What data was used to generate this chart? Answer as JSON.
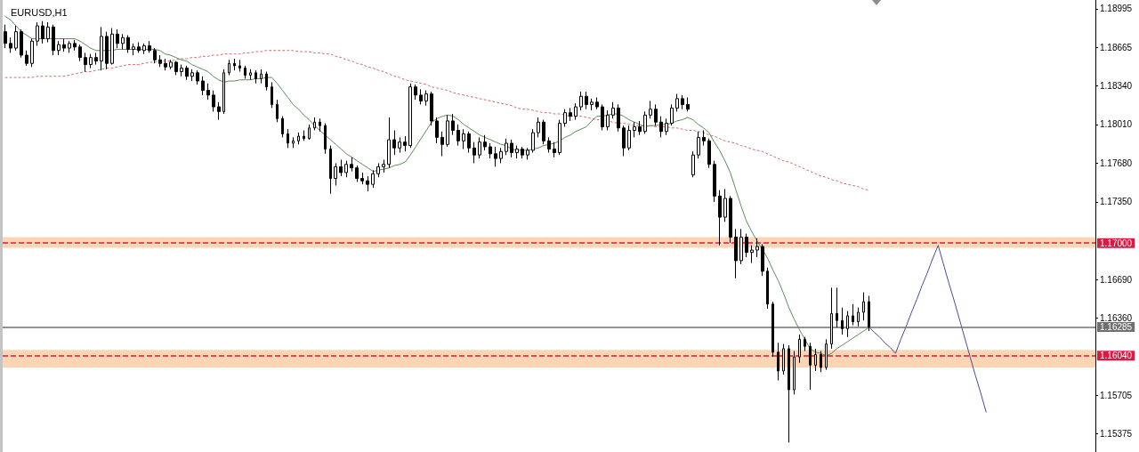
{
  "chart_data": {
    "type": "candlestick",
    "title": "EURUSD,H1",
    "color": "#000000",
    "categories": [
      null,
      null,
      null,
      null,
      null,
      null,
      null,
      null,
      null,
      null,
      null,
      null,
      null,
      null,
      null,
      null,
      null,
      null,
      null,
      null,
      null,
      null,
      null,
      null,
      null,
      null,
      null,
      null,
      null,
      null,
      null,
      null,
      null,
      null,
      null,
      null,
      null,
      null,
      null,
      null,
      null,
      null,
      null,
      null,
      null,
      null,
      null,
      null,
      null,
      null,
      null,
      null,
      null,
      null,
      null,
      null,
      null,
      null,
      null,
      null,
      null,
      null,
      null,
      null,
      null,
      null,
      null,
      null,
      null,
      null,
      null,
      null,
      null,
      null,
      null,
      null,
      null,
      null,
      null,
      null,
      null,
      null,
      null,
      null,
      null,
      null,
      null,
      null,
      null,
      null,
      null,
      null,
      null,
      null,
      null,
      null,
      null,
      null,
      null,
      null,
      null,
      null,
      null,
      null,
      null,
      null,
      null,
      null,
      null,
      null,
      null,
      null,
      null,
      null,
      null,
      null,
      null,
      null,
      null,
      null,
      null,
      null,
      null,
      null,
      null,
      null,
      null,
      null,
      null,
      null,
      null,
      null,
      null,
      null,
      null,
      null,
      null,
      null,
      null,
      null,
      null,
      null,
      null,
      null,
      null,
      null,
      null,
      null,
      null,
      null,
      null,
      null,
      null,
      null,
      null,
      null,
      null,
      null,
      null,
      null,
      null,
      null,
      null,
      null,
      null,
      null,
      null,
      null,
      null,
      null,
      null,
      null,
      null,
      null,
      null,
      null,
      null,
      null,
      null,
      null,
      null,
      null,
      null,
      null,
      null,
      null,
      null,
      null,
      null,
      null,
      null,
      null,
      null,
      null,
      null,
      null,
      null,
      null,
      null,
      null,
      null,
      null,
      null,
      null,
      null
    ],
    "ohlc": [
      [
        1.188,
        1.1886,
        1.1866,
        1.187
      ],
      [
        1.187,
        1.1875,
        1.1862,
        1.1866
      ],
      [
        1.1866,
        1.1885,
        1.1864,
        1.188
      ],
      [
        1.188,
        1.1882,
        1.1858,
        1.186
      ],
      [
        1.186,
        1.1864,
        1.1851,
        1.1853
      ],
      [
        1.1853,
        1.1874,
        1.185,
        1.1872
      ],
      [
        1.1872,
        1.1888,
        1.1868,
        1.1885
      ],
      [
        1.1885,
        1.1889,
        1.187,
        1.1874
      ],
      [
        1.1874,
        1.1888,
        1.1871,
        1.1884
      ],
      [
        1.1884,
        1.1886,
        1.186,
        1.1864
      ],
      [
        1.1864,
        1.1872,
        1.186,
        1.1869
      ],
      [
        1.1869,
        1.1874,
        1.1863,
        1.1866
      ],
      [
        1.1866,
        1.1872,
        1.1862,
        1.187
      ],
      [
        1.187,
        1.1873,
        1.1864,
        1.1867
      ],
      [
        1.1867,
        1.1869,
        1.1855,
        1.1858
      ],
      [
        1.1858,
        1.1862,
        1.1846,
        1.1852
      ],
      [
        1.1852,
        1.1861,
        1.1849,
        1.1858
      ],
      [
        1.1858,
        1.1862,
        1.1852,
        1.1855
      ],
      [
        1.1855,
        1.1884,
        1.1847,
        1.1876
      ],
      [
        1.1876,
        1.188,
        1.1848,
        1.1853
      ],
      [
        1.1853,
        1.1883,
        1.1852,
        1.1878
      ],
      [
        1.1878,
        1.1882,
        1.1866,
        1.187
      ],
      [
        1.187,
        1.1878,
        1.1865,
        1.1875
      ],
      [
        1.1875,
        1.1877,
        1.1862,
        1.1865
      ],
      [
        1.1865,
        1.187,
        1.186,
        1.1867
      ],
      [
        1.1867,
        1.1871,
        1.1862,
        1.1864
      ],
      [
        1.1864,
        1.187,
        1.1861,
        1.1868
      ],
      [
        1.1868,
        1.1872,
        1.1862,
        1.1864
      ],
      [
        1.1864,
        1.1866,
        1.1853,
        1.1856
      ],
      [
        1.1856,
        1.186,
        1.185,
        1.1853
      ],
      [
        1.1853,
        1.1857,
        1.1847,
        1.185
      ],
      [
        1.185,
        1.1856,
        1.1848,
        1.1854
      ],
      [
        1.1854,
        1.1855,
        1.1843,
        1.1846
      ],
      [
        1.1846,
        1.1852,
        1.1842,
        1.1849
      ],
      [
        1.1849,
        1.1851,
        1.1839,
        1.1842
      ],
      [
        1.1842,
        1.1848,
        1.1838,
        1.1845
      ],
      [
        1.1845,
        1.1847,
        1.1835,
        1.1838
      ],
      [
        1.1838,
        1.1842,
        1.1826,
        1.183
      ],
      [
        1.183,
        1.1836,
        1.1822,
        1.1826
      ],
      [
        1.1826,
        1.183,
        1.1812,
        1.1816
      ],
      [
        1.1816,
        1.182,
        1.1805,
        1.1812
      ],
      [
        1.1812,
        1.1848,
        1.181,
        1.1845
      ],
      [
        1.1845,
        1.1856,
        1.1843,
        1.1853
      ],
      [
        1.1853,
        1.1857,
        1.1847,
        1.1851
      ],
      [
        1.1851,
        1.1856,
        1.1846,
        1.1849
      ],
      [
        1.1849,
        1.1851,
        1.184,
        1.1843
      ],
      [
        1.1843,
        1.1848,
        1.1839,
        1.1845
      ],
      [
        1.1845,
        1.1847,
        1.1836,
        1.184
      ],
      [
        1.184,
        1.1848,
        1.1836,
        1.1844
      ],
      [
        1.1844,
        1.1846,
        1.183,
        1.1833
      ],
      [
        1.1833,
        1.1837,
        1.1815,
        1.1818
      ],
      [
        1.1818,
        1.1822,
        1.1803,
        1.1806
      ],
      [
        1.1806,
        1.1808,
        1.179,
        1.1793
      ],
      [
        1.1793,
        1.1797,
        1.1781,
        1.1785
      ],
      [
        1.1785,
        1.179,
        1.1781,
        1.1787
      ],
      [
        1.1787,
        1.1794,
        1.1784,
        1.1791
      ],
      [
        1.1791,
        1.1796,
        1.1787,
        1.1789
      ],
      [
        1.1789,
        1.1801,
        1.1788,
        1.1798
      ],
      [
        1.1798,
        1.1807,
        1.1796,
        1.1803
      ],
      [
        1.1803,
        1.1806,
        1.1795,
        1.18
      ],
      [
        1.18,
        1.1802,
        1.1776,
        1.178
      ],
      [
        1.178,
        1.1783,
        1.1742,
        1.1755
      ],
      [
        1.1755,
        1.1768,
        1.1749,
        1.1765
      ],
      [
        1.1765,
        1.1771,
        1.1757,
        1.176
      ],
      [
        1.176,
        1.177,
        1.1756,
        1.1767
      ],
      [
        1.1767,
        1.1773,
        1.1761,
        1.1764
      ],
      [
        1.1764,
        1.1766,
        1.1752,
        1.1755
      ],
      [
        1.1755,
        1.176,
        1.175,
        1.1753
      ],
      [
        1.1753,
        1.1757,
        1.1744,
        1.175
      ],
      [
        1.175,
        1.1762,
        1.1747,
        1.1759
      ],
      [
        1.1759,
        1.1768,
        1.1756,
        1.1765
      ],
      [
        1.1765,
        1.1771,
        1.176,
        1.1767
      ],
      [
        1.1767,
        1.1807,
        1.1764,
        1.1788
      ],
      [
        1.1788,
        1.1796,
        1.1775,
        1.1781
      ],
      [
        1.1781,
        1.179,
        1.1777,
        1.1786
      ],
      [
        1.1786,
        1.1791,
        1.1778,
        1.1783
      ],
      [
        1.1783,
        1.1836,
        1.1781,
        1.1833
      ],
      [
        1.1833,
        1.1835,
        1.1822,
        1.1826
      ],
      [
        1.1826,
        1.1831,
        1.1818,
        1.1821
      ],
      [
        1.1821,
        1.183,
        1.1817,
        1.1827
      ],
      [
        1.1827,
        1.1829,
        1.18,
        1.1804
      ],
      [
        1.1804,
        1.1807,
        1.1785,
        1.179
      ],
      [
        1.179,
        1.1795,
        1.1774,
        1.1784
      ],
      [
        1.1784,
        1.1809,
        1.1782,
        1.1804
      ],
      [
        1.1804,
        1.181,
        1.1792,
        1.1796
      ],
      [
        1.1796,
        1.1801,
        1.1783,
        1.1787
      ],
      [
        1.1787,
        1.1797,
        1.178,
        1.1793
      ],
      [
        1.1793,
        1.1795,
        1.1777,
        1.1781
      ],
      [
        1.1781,
        1.1786,
        1.1768,
        1.1775
      ],
      [
        1.1775,
        1.179,
        1.1772,
        1.1786
      ],
      [
        1.1786,
        1.1792,
        1.1779,
        1.1782
      ],
      [
        1.1782,
        1.1785,
        1.1772,
        1.1776
      ],
      [
        1.1776,
        1.1782,
        1.1765,
        1.1772
      ],
      [
        1.1772,
        1.1781,
        1.1768,
        1.1778
      ],
      [
        1.1778,
        1.1789,
        1.1775,
        1.1785
      ],
      [
        1.1785,
        1.1788,
        1.1773,
        1.1777
      ],
      [
        1.1777,
        1.1783,
        1.1772,
        1.178
      ],
      [
        1.178,
        1.1782,
        1.1772,
        1.1775
      ],
      [
        1.1775,
        1.1781,
        1.1771,
        1.1779
      ],
      [
        1.1779,
        1.1797,
        1.1777,
        1.1794
      ],
      [
        1.1794,
        1.1807,
        1.179,
        1.1803
      ],
      [
        1.1803,
        1.1805,
        1.1784,
        1.1787
      ],
      [
        1.1787,
        1.179,
        1.1777,
        1.178
      ],
      [
        1.178,
        1.1786,
        1.1773,
        1.1777
      ],
      [
        1.1777,
        1.1805,
        1.1775,
        1.1802
      ],
      [
        1.1802,
        1.1814,
        1.1799,
        1.1811
      ],
      [
        1.1811,
        1.1815,
        1.1804,
        1.1808
      ],
      [
        1.1808,
        1.1819,
        1.1805,
        1.1816
      ],
      [
        1.1816,
        1.1829,
        1.1813,
        1.1825
      ],
      [
        1.1825,
        1.1829,
        1.1814,
        1.1818
      ],
      [
        1.1818,
        1.1823,
        1.1813,
        1.182
      ],
      [
        1.182,
        1.1824,
        1.1814,
        1.1816
      ],
      [
        1.1816,
        1.1818,
        1.1796,
        1.1799
      ],
      [
        1.1799,
        1.1813,
        1.1796,
        1.1809
      ],
      [
        1.1809,
        1.182,
        1.1806,
        1.1815
      ],
      [
        1.1815,
        1.1818,
        1.1795,
        1.1798
      ],
      [
        1.1798,
        1.18,
        1.1774,
        1.1781
      ],
      [
        1.1781,
        1.18,
        1.1779,
        1.1796
      ],
      [
        1.1796,
        1.1803,
        1.179,
        1.1799
      ],
      [
        1.1799,
        1.1804,
        1.1792,
        1.1795
      ],
      [
        1.1795,
        1.1812,
        1.1793,
        1.1809
      ],
      [
        1.1809,
        1.1821,
        1.1806,
        1.1814
      ],
      [
        1.1814,
        1.1818,
        1.18,
        1.1803
      ],
      [
        1.1803,
        1.1808,
        1.179,
        1.1795
      ],
      [
        1.1795,
        1.1806,
        1.1792,
        1.1802
      ],
      [
        1.1802,
        1.1818,
        1.18,
        1.1815
      ],
      [
        1.1815,
        1.1827,
        1.1812,
        1.1823
      ],
      [
        1.1823,
        1.1826,
        1.1814,
        1.1818
      ],
      [
        1.1818,
        1.1824,
        1.1812,
        1.1814
      ],
      [
        1.1758,
        1.1778,
        1.1756,
        1.1775
      ],
      [
        1.1775,
        1.1795,
        1.1772,
        1.179
      ],
      [
        1.179,
        1.1796,
        1.1783,
        1.1787
      ],
      [
        1.1787,
        1.1789,
        1.1764,
        1.1767
      ],
      [
        1.1767,
        1.177,
        1.1735,
        1.174
      ],
      [
        1.174,
        1.1745,
        1.1698,
        1.1722
      ],
      [
        1.1722,
        1.1746,
        1.1718,
        1.1738
      ],
      [
        1.1738,
        1.174,
        1.17,
        1.1705
      ],
      [
        1.1705,
        1.1712,
        1.167,
        1.1685
      ],
      [
        1.1685,
        1.1712,
        1.1682,
        1.1705
      ],
      [
        1.1705,
        1.1708,
        1.1688,
        1.1692
      ],
      [
        1.1692,
        1.1698,
        1.1683,
        1.1694
      ],
      [
        1.1694,
        1.1704,
        1.1688,
        1.1697
      ],
      [
        1.1697,
        1.1699,
        1.1672,
        1.1676
      ],
      [
        1.1676,
        1.1679,
        1.1644,
        1.1648
      ],
      [
        1.1648,
        1.165,
        1.1603,
        1.1607
      ],
      [
        1.1607,
        1.1615,
        1.1583,
        1.1591
      ],
      [
        1.1591,
        1.1614,
        1.1588,
        1.161
      ],
      [
        1.161,
        1.1613,
        1.153,
        1.1575
      ],
      [
        1.1575,
        1.1608,
        1.1571,
        1.1603
      ],
      [
        1.1603,
        1.1622,
        1.1598,
        1.1618
      ],
      [
        1.1618,
        1.162,
        1.1608,
        1.1612
      ],
      [
        1.1612,
        1.1615,
        1.1575,
        1.1596
      ],
      [
        1.1596,
        1.161,
        1.1591,
        1.1605
      ],
      [
        1.1605,
        1.1608,
        1.159,
        1.1594
      ],
      [
        1.1594,
        1.1618,
        1.1592,
        1.1614
      ],
      [
        1.1614,
        1.1662,
        1.161,
        1.164
      ],
      [
        1.164,
        1.1662,
        1.1628,
        1.1634
      ],
      [
        1.1634,
        1.1645,
        1.1622,
        1.1627
      ],
      [
        1.1627,
        1.1642,
        1.162,
        1.1638
      ],
      [
        1.1638,
        1.1648,
        1.163,
        1.1633
      ],
      [
        1.1633,
        1.1645,
        1.1629,
        1.1641
      ],
      [
        1.1641,
        1.1658,
        1.1634,
        1.165
      ],
      [
        1.165,
        1.1655,
        1.1625,
        1.16285
      ],
      null,
      null,
      null,
      null,
      null,
      null,
      null,
      null,
      null,
      null,
      null,
      null,
      null,
      null,
      null,
      null,
      null,
      null,
      null,
      null,
      null,
      null,
      null,
      null,
      null,
      null,
      null,
      null,
      null,
      null,
      null,
      null,
      null,
      null,
      null,
      null,
      null,
      null,
      null,
      null,
      null,
      null
    ],
    "series": [
      {
        "type": "line",
        "color": "#d46a6a",
        "line_style": "dotted",
        "values": [
          1.1841,
          1.1841,
          1.1841,
          1.1841,
          1.1841,
          1.1841,
          1.1842,
          1.1842,
          1.1842,
          1.1842,
          1.1842,
          1.1842,
          1.1843,
          1.1844,
          1.1845,
          1.1846,
          1.1846,
          1.1847,
          1.1848,
          1.1849,
          1.1849,
          1.185,
          1.1851,
          1.1852,
          1.1852,
          1.1852,
          1.1853,
          1.1854,
          1.1854,
          1.1855,
          1.1855,
          1.1855,
          1.1856,
          1.1857,
          1.1857,
          1.1858,
          1.1858,
          1.1859,
          1.1859,
          1.186,
          1.186,
          1.1861,
          1.1861,
          1.1861,
          1.1861,
          1.1862,
          1.1862,
          1.1863,
          1.1863,
          1.1864,
          1.1864,
          1.1864,
          1.1864,
          1.1864,
          1.1864,
          1.1863,
          1.1863,
          1.1863,
          1.1862,
          1.1862,
          1.1861,
          1.1861,
          1.1859,
          1.1858,
          1.1856,
          1.1855,
          1.1853,
          1.1852,
          1.185,
          1.1849,
          1.1847,
          1.1846,
          1.1844,
          1.1842,
          1.1841,
          1.1839,
          1.1838,
          1.1837,
          1.1836,
          1.1835,
          1.1833,
          1.1832,
          1.1831,
          1.183,
          1.1828,
          1.1827,
          1.1826,
          1.1825,
          1.1824,
          1.1823,
          1.1822,
          1.1821,
          1.182,
          1.1819,
          1.1818,
          1.1817,
          1.1815,
          1.1814,
          1.1814,
          1.1813,
          1.1812,
          1.1811,
          1.1811,
          1.181,
          1.181,
          1.1809,
          1.1808,
          1.1808,
          1.1808,
          1.1807,
          1.1806,
          1.1805,
          1.1805,
          1.1804,
          1.1803,
          1.1802,
          1.1802,
          1.1801,
          1.18,
          1.18,
          1.18,
          1.18,
          1.1799,
          1.1799,
          1.1799,
          1.1798,
          1.1798,
          1.1797,
          1.1796,
          1.1796,
          1.1795,
          1.1794,
          1.1792,
          1.1791,
          1.1789,
          1.1787,
          1.1786,
          1.1785,
          1.1783,
          1.1782,
          1.178,
          1.1779,
          1.1778,
          1.1776,
          1.1774,
          1.1772,
          1.177,
          1.1769,
          1.1767,
          1.1765,
          1.1763,
          1.1761,
          1.1759,
          1.1757,
          1.1756,
          1.1754,
          1.1753,
          1.1751,
          1.175,
          1.1749,
          1.1748,
          1.1746,
          1.1745,
          null,
          null,
          null,
          null,
          null,
          null,
          null,
          null,
          null,
          null,
          null,
          null,
          null,
          null,
          null,
          null,
          null,
          null,
          null,
          null,
          null,
          null,
          null,
          null,
          null,
          null,
          null,
          null,
          null,
          null,
          null,
          null,
          null,
          null,
          null,
          null,
          null,
          null,
          null,
          null,
          null,
          null
        ]
      },
      {
        "type": "line",
        "color": "#5b8c5b",
        "values": [
          1.1893,
          1.189,
          1.1885,
          1.188,
          1.1877,
          1.1874,
          1.1874,
          1.1874,
          1.1874,
          1.1874,
          1.1874,
          1.1874,
          1.1874,
          1.1874,
          1.1872,
          1.1869,
          1.1866,
          1.1864,
          1.1864,
          1.1864,
          1.1864,
          1.1865,
          1.1865,
          1.1865,
          1.1865,
          1.1865,
          1.1865,
          1.1865,
          1.1865,
          1.1864,
          1.1861,
          1.186,
          1.1858,
          1.1856,
          1.1855,
          1.1852,
          1.185,
          1.1848,
          1.1846,
          1.1842,
          1.1839,
          1.1837,
          1.1838,
          1.1838,
          1.1839,
          1.1839,
          1.1839,
          1.184,
          1.184,
          1.1841,
          1.1841,
          1.1836,
          1.183,
          1.1824,
          1.1818,
          1.1814,
          1.1809,
          1.1805,
          1.18,
          1.1796,
          1.1792,
          1.1788,
          1.1784,
          1.178,
          1.1776,
          1.1773,
          1.177,
          1.1767,
          1.1764,
          1.1761,
          1.1762,
          1.1763,
          1.1764,
          1.1766,
          1.1767,
          1.1769,
          1.1775,
          1.1782,
          1.1789,
          1.1796,
          1.1803,
          1.1806,
          1.1808,
          1.1809,
          1.1808,
          1.1805,
          1.1801,
          1.1798,
          1.1795,
          1.1792,
          1.179,
          1.1788,
          1.1786,
          1.1784,
          1.1783,
          1.178,
          1.1779,
          1.1779,
          1.1779,
          1.178,
          1.1781,
          1.1783,
          1.1784,
          1.1785,
          1.1787,
          1.179,
          1.1792,
          1.1795,
          1.1797,
          1.1799,
          1.1804,
          1.1808,
          1.1808,
          1.1809,
          1.181,
          1.181,
          1.1808,
          1.1805,
          1.1803,
          1.1801,
          1.1799,
          1.18,
          1.18,
          1.1801,
          1.1801,
          1.1802,
          1.1804,
          1.1805,
          1.1807,
          1.1805,
          1.1801,
          1.1798,
          1.1794,
          1.1786,
          1.1779,
          1.177,
          1.176,
          1.1746,
          1.1732,
          1.1719,
          1.171,
          1.1702,
          1.1695,
          1.1687,
          1.1677,
          1.1668,
          1.1657,
          1.1645,
          1.1635,
          1.1626,
          1.1618,
          1.161,
          1.1607,
          1.1606,
          1.1604,
          1.1606,
          1.161,
          1.1613,
          1.1616,
          1.1619,
          1.1622,
          1.1625,
          1.1628,
          null,
          null,
          null,
          null,
          null,
          null,
          null,
          null,
          null,
          null,
          null,
          null,
          null,
          null,
          null,
          null,
          null,
          null,
          null,
          null,
          null,
          null,
          null,
          null,
          null,
          null,
          null,
          null,
          null,
          null,
          null,
          null,
          null,
          null,
          null,
          null,
          null,
          null,
          null,
          null,
          null,
          null
        ]
      },
      {
        "type": "line",
        "color": "#4a4a96",
        "values": [
          null,
          null,
          null,
          null,
          null,
          null,
          null,
          null,
          null,
          null,
          null,
          null,
          null,
          null,
          null,
          null,
          null,
          null,
          null,
          null,
          null,
          null,
          null,
          null,
          null,
          null,
          null,
          null,
          null,
          null,
          null,
          null,
          null,
          null,
          null,
          null,
          null,
          null,
          null,
          null,
          null,
          null,
          null,
          null,
          null,
          null,
          null,
          null,
          null,
          null,
          null,
          null,
          null,
          null,
          null,
          null,
          null,
          null,
          null,
          null,
          null,
          null,
          null,
          null,
          null,
          null,
          null,
          null,
          null,
          null,
          null,
          null,
          null,
          null,
          null,
          null,
          null,
          null,
          null,
          null,
          null,
          null,
          null,
          null,
          null,
          null,
          null,
          null,
          null,
          null,
          null,
          null,
          null,
          null,
          null,
          null,
          null,
          null,
          null,
          null,
          null,
          null,
          null,
          null,
          null,
          null,
          null,
          null,
          null,
          null,
          null,
          null,
          null,
          null,
          null,
          null,
          null,
          null,
          null,
          null,
          null,
          null,
          null,
          null,
          null,
          null,
          null,
          null,
          null,
          null,
          null,
          null,
          null,
          null,
          null,
          null,
          null,
          null,
          null,
          null,
          null,
          null,
          null,
          null,
          null,
          null,
          null,
          null,
          null,
          null,
          null,
          null,
          null,
          null,
          null,
          null,
          null,
          null,
          null,
          null,
          null,
          null,
          1.16285,
          1.1624,
          1.162,
          1.1615,
          1.1611,
          1.1606,
          1.1618,
          1.1629,
          1.1641,
          1.1652,
          1.1664,
          1.1675,
          1.1687,
          1.1698,
          1.1682,
          1.1666,
          1.1651,
          1.1635,
          1.1619,
          1.1603,
          1.1587,
          1.1572,
          1.1556,
          null,
          null,
          null,
          null,
          null,
          null,
          null,
          null,
          null,
          null,
          null,
          null,
          null,
          null,
          null,
          null,
          null,
          null,
          null,
          null
        ]
      }
    ],
    "ylim": [
      1.1522,
      1.1907
    ],
    "yticks": [
      1.18995,
      1.18665,
      {
        "value": 1.1834,
        "label": "1.18340"
      },
      {
        "value": 1.1801,
        "label": "1.18010"
      },
      {
        "value": 1.1768,
        "label": "1.17680"
      },
      {
        "value": 1.1735,
        "label": "1.17350"
      },
      {
        "value": 1.1669,
        "label": "1.16690"
      },
      {
        "value": 1.1636,
        "label": "1.16360"
      },
      1.15705,
      1.15375
    ],
    "tick_labels": "y",
    "ref_lines": [
      {
        "axis": "y",
        "value": 1.17,
        "label": "1.17000",
        "color": "#d81b43",
        "line_style": "dashed"
      },
      {
        "axis": "y",
        "value": 1.16285,
        "label": "1.16285",
        "color": "#707070",
        "line_style": "solid"
      },
      {
        "axis": "y",
        "value": 1.1604,
        "label": "1.16040",
        "color": "#d81b43",
        "line_style": "dashed"
      }
    ],
    "bands": [
      {
        "axis": "y",
        "from": 1.1696,
        "to": 1.1705,
        "color": "#fcd6b4"
      },
      {
        "axis": "y",
        "from": 1.1594,
        "to": 1.1609,
        "color": "#fcd6b4"
      }
    ]
  }
}
